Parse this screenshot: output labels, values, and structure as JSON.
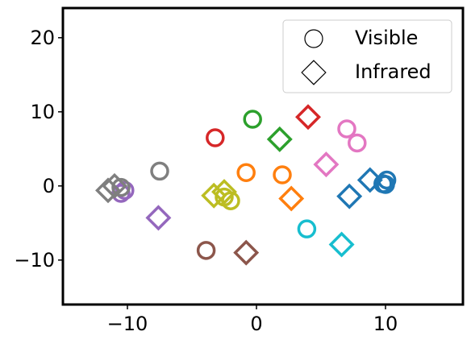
{
  "chart_data": {
    "type": "scatter",
    "xlim": [
      -15,
      16
    ],
    "ylim": [
      -16,
      24
    ],
    "xticks": [
      {
        "value": -10,
        "label": "−10"
      },
      0,
      10
    ],
    "yticks": [
      {
        "value": -10,
        "label": "−10"
      },
      0,
      10,
      20
    ],
    "legend": "upper right",
    "series": [
      {
        "name": "Visible",
        "marker": "circle",
        "color": "#000000",
        "x": [
          9.8,
          10.1,
          10.0,
          -0.8,
          2.0,
          -0.3,
          -3.2,
          -10.5,
          -10.2,
          -3.9,
          7.0,
          7.8,
          -7.5,
          -10.5,
          -2.5,
          -2.0,
          3.9
        ],
        "y": [
          0.3,
          0.8,
          0.2,
          1.8,
          1.5,
          9.0,
          6.5,
          -1.0,
          -0.6,
          -8.7,
          7.7,
          5.8,
          2.0,
          -0.2,
          -1.5,
          -2.0,
          -5.8
        ],
        "colors": [
          "#1f77b4",
          "#1f77b4",
          "#1f77b4",
          "#ff7f0e",
          "#ff7f0e",
          "#2ca02c",
          "#d62728",
          "#9467bd",
          "#9467bd",
          "#8c564b",
          "#e377c2",
          "#e377c2",
          "#7f7f7f",
          "#7f7f7f",
          "#bcbd22",
          "#bcbd22",
          "#17becf"
        ]
      },
      {
        "name": "Infrared",
        "marker": "diamond",
        "color": "#000000",
        "x": [
          7.2,
          8.8,
          2.7,
          1.8,
          4.0,
          -7.6,
          -0.8,
          5.4,
          -11.5,
          -11.0,
          -3.3,
          -2.5,
          6.6
        ],
        "y": [
          -1.4,
          0.8,
          -1.7,
          6.3,
          9.3,
          -4.3,
          -9.0,
          2.9,
          -0.6,
          0.0,
          -1.3,
          -0.8,
          -7.9
        ],
        "colors": [
          "#1f77b4",
          "#1f77b4",
          "#ff7f0e",
          "#2ca02c",
          "#d62728",
          "#9467bd",
          "#8c564b",
          "#e377c2",
          "#7f7f7f",
          "#7f7f7f",
          "#bcbd22",
          "#bcbd22",
          "#17becf"
        ]
      }
    ]
  }
}
